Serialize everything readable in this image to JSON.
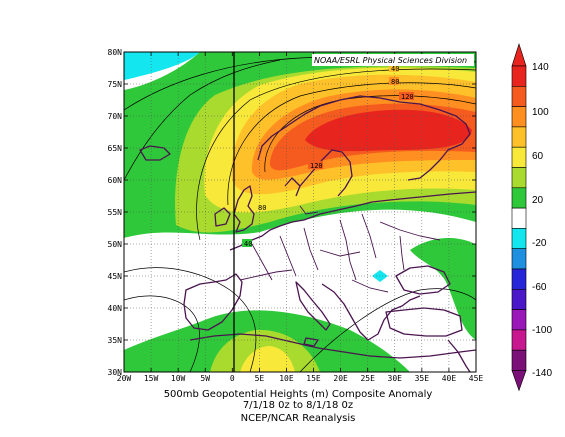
{
  "credit": "NOAA/ESRL Physical Sciences Division",
  "caption": {
    "line1": "500mb Geopotential Heights (m)   Composite Anomaly",
    "line2": "7/1/18 0z  to  8/1/18 0z",
    "line3": "NCEP/NCAR Reanalysis"
  },
  "map": {
    "lon_range": [
      -20,
      45
    ],
    "lat_range": [
      30,
      80
    ],
    "lon_labels": [
      "20W",
      "15W",
      "10W",
      "5W",
      "0",
      "5E",
      "10E",
      "15E",
      "20E",
      "25E",
      "30E",
      "35E",
      "40E",
      "45E"
    ],
    "lat_labels": [
      "80N",
      "75N",
      "70N",
      "65N",
      "60N",
      "55N",
      "50N",
      "45N",
      "40N",
      "35N",
      "30N"
    ],
    "contour_labels": [
      "40",
      "80",
      "120",
      "120",
      "80",
      "40"
    ]
  },
  "colorbar": {
    "labels": [
      "140",
      "100",
      "60",
      "20",
      "-20",
      "-60",
      "-100",
      "-140"
    ],
    "colors": {
      "c140": "#e8241f",
      "c120": "#f55a1e",
      "c100": "#ff8f20",
      "c80": "#ffc12a",
      "c60": "#f7e83a",
      "c40": "#a8db2e",
      "c20": "#2fc83a",
      "c0": "#ffffff",
      "cm20": "#14e6f0",
      "cm40": "#1f8fe0",
      "cm60": "#2626d8",
      "cm80": "#4a18c8",
      "cm100": "#9a18b8",
      "cm120": "#c81890",
      "cm140": "#7a1078"
    }
  }
}
